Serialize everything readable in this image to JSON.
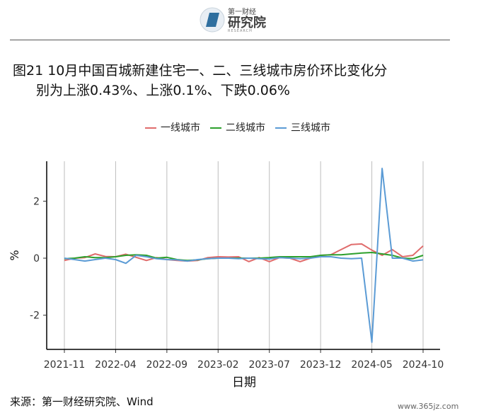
{
  "header": {
    "logo_brand": "第一财经",
    "logo_name": "研究院",
    "logo_sub": "RESEARCH"
  },
  "title_line1": "图21 10月中国百城新建住宅一、二、三线城市房价环比变化分",
  "title_line2": "别为上涨0.43%、上涨0.1%、下跌0.06%",
  "source": "来源：第一财经研究院、Wind",
  "watermark": "www.365jz.com",
  "chart_data": {
    "type": "line",
    "xlabel": "日期",
    "ylabel": "%",
    "ylim": [
      -3.2,
      3.4
    ],
    "yticks": [
      -2,
      0,
      2
    ],
    "grid": "vertical",
    "legend_position": "top",
    "x": [
      "2021-11",
      "2021-12",
      "2022-01",
      "2022-02",
      "2022-03",
      "2022-04",
      "2022-05",
      "2022-06",
      "2022-07",
      "2022-08",
      "2022-09",
      "2022-10",
      "2022-11",
      "2022-12",
      "2023-01",
      "2023-02",
      "2023-03",
      "2023-04",
      "2023-05",
      "2023-06",
      "2023-07",
      "2023-08",
      "2023-09",
      "2023-10",
      "2023-11",
      "2023-12",
      "2024-01",
      "2024-02",
      "2024-03",
      "2024-04",
      "2024-05",
      "2024-06",
      "2024-07",
      "2024-08",
      "2024-09",
      "2024-10"
    ],
    "xticks": [
      "2021-11",
      "2022-04",
      "2022-09",
      "2023-02",
      "2023-07",
      "2023-12",
      "2024-05",
      "2024-10"
    ],
    "series": [
      {
        "name": "一线城市",
        "color": "#e06c6c",
        "values": [
          -0.08,
          0.0,
          0.02,
          0.15,
          0.06,
          0.05,
          0.14,
          0.03,
          -0.08,
          0.02,
          -0.05,
          -0.08,
          -0.1,
          -0.08,
          0.02,
          0.05,
          0.04,
          0.05,
          -0.12,
          0.02,
          -0.12,
          0.02,
          0.0,
          -0.12,
          0.0,
          0.1,
          0.12,
          0.3,
          0.48,
          0.5,
          0.28,
          0.1,
          0.3,
          0.05,
          0.1,
          0.43
        ]
      },
      {
        "name": "二线城市",
        "color": "#2ca02c",
        "values": [
          -0.02,
          0.0,
          0.05,
          0.02,
          0.02,
          0.05,
          0.1,
          0.12,
          0.1,
          0.0,
          0.03,
          -0.05,
          -0.08,
          -0.06,
          -0.02,
          0.0,
          0.0,
          0.0,
          0.0,
          0.0,
          0.02,
          0.05,
          0.05,
          0.05,
          0.05,
          0.1,
          0.12,
          0.12,
          0.15,
          0.18,
          0.2,
          0.15,
          0.1,
          0.0,
          -0.02,
          0.1
        ]
      },
      {
        "name": "三线城市",
        "color": "#5b9bd5",
        "values": [
          0.0,
          -0.05,
          -0.1,
          -0.05,
          0.0,
          -0.05,
          -0.18,
          0.1,
          0.05,
          -0.02,
          -0.05,
          -0.06,
          -0.1,
          -0.05,
          -0.02,
          0.0,
          0.0,
          -0.02,
          0.0,
          -0.02,
          -0.03,
          0.02,
          0.0,
          -0.02,
          0.0,
          0.05,
          0.05,
          0.0,
          -0.02,
          0.0,
          -2.95,
          3.15,
          0.0,
          0.0,
          -0.1,
          -0.06
        ]
      }
    ]
  }
}
